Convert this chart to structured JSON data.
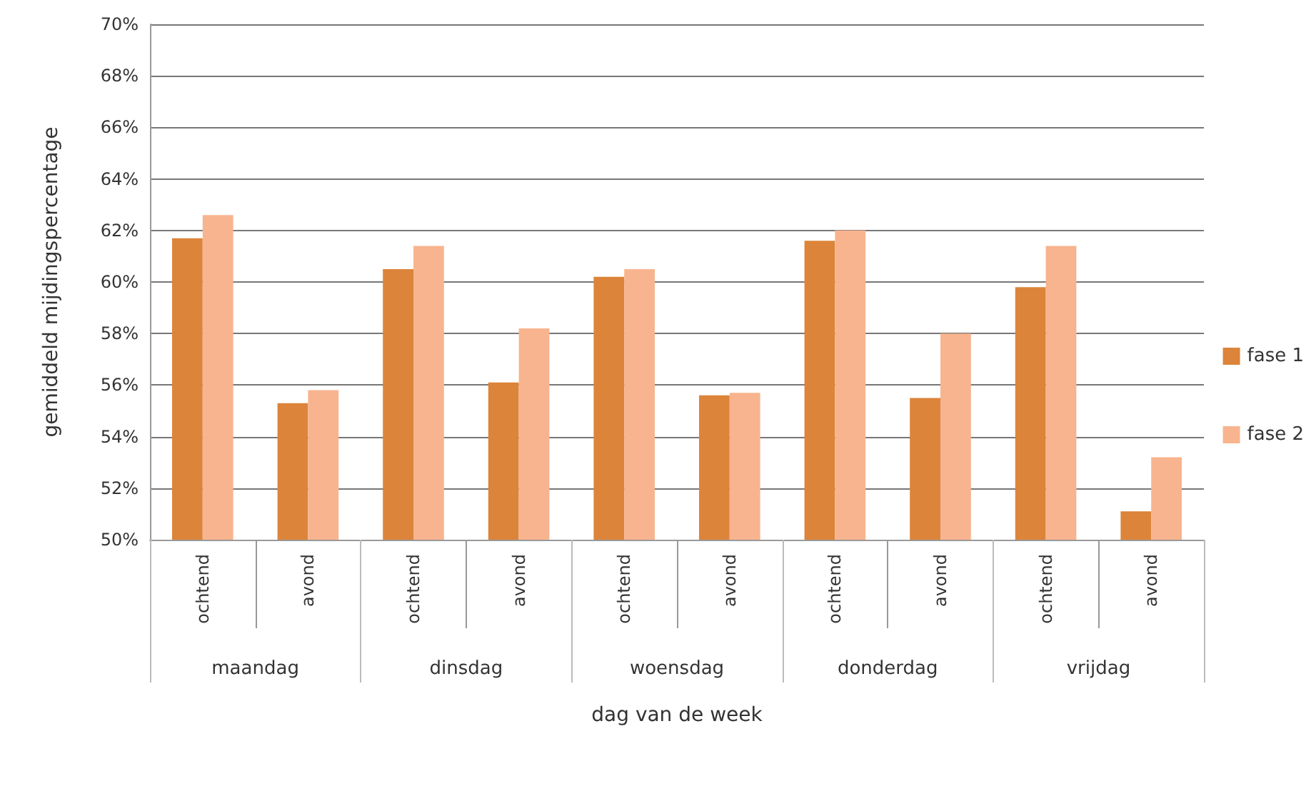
{
  "chart_data": {
    "type": "bar",
    "xlabel": "dag van de week",
    "ylabel": "gemiddeld mijdingspercentage",
    "categories": [
      "ochtend",
      "avond",
      "ochtend",
      "avond",
      "ochtend",
      "avond",
      "ochtend",
      "avond",
      "ochtend",
      "avond"
    ],
    "annotations": [
      "maandag",
      "dinsdag",
      "woensdag",
      "donderdag",
      "vrijdag"
    ],
    "series": [
      {
        "name": "fase 1",
        "color": "#dc843a",
        "values": [
          61.7,
          55.3,
          60.5,
          56.1,
          60.2,
          55.6,
          61.6,
          55.5,
          59.8,
          51.1
        ]
      },
      {
        "name": "fase 2",
        "color": "#f8b48e",
        "values": [
          62.6,
          55.8,
          61.4,
          58.2,
          60.5,
          55.7,
          62.0,
          58.0,
          61.4,
          53.2
        ]
      }
    ],
    "ylim": [
      50,
      70
    ],
    "yticks": [
      {
        "value": 50,
        "label": "50%"
      },
      {
        "value": 52,
        "label": "52%"
      },
      {
        "value": 54,
        "label": "54%"
      },
      {
        "value": 56,
        "label": "56%"
      },
      {
        "value": 58,
        "label": "58%"
      },
      {
        "value": 60,
        "label": "60%"
      },
      {
        "value": 62,
        "label": "62%"
      },
      {
        "value": 64,
        "label": "64%"
      },
      {
        "value": 66,
        "label": "66%"
      },
      {
        "value": 68,
        "label": "68%"
      },
      {
        "value": 70,
        "label": "70%"
      }
    ],
    "grid": "y",
    "legend": "right"
  }
}
